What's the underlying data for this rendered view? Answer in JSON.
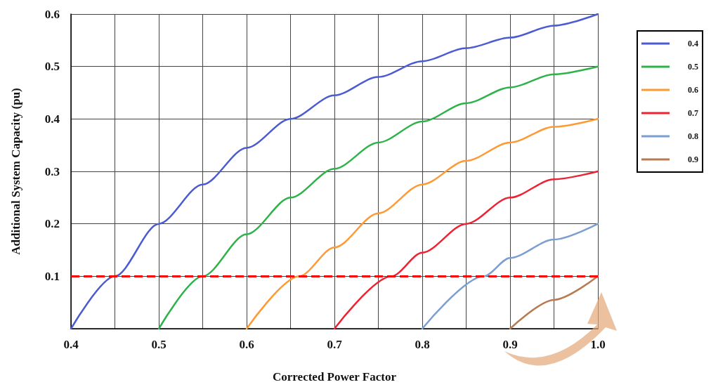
{
  "chart_data": {
    "type": "line",
    "xlabel": "Corrected Power Factor",
    "ylabel": "Additional System Capacity (pu)",
    "xlim": [
      0.4,
      1.0
    ],
    "ylim": [
      0,
      0.6
    ],
    "xticks": [
      0.4,
      {
        "value": 0.45,
        "label": null
      },
      0.5,
      {
        "value": 0.55,
        "label": null
      },
      0.6,
      {
        "value": 0.65,
        "label": null
      },
      0.7,
      {
        "value": 0.75,
        "label": null
      },
      0.8,
      {
        "value": 0.85,
        "label": null
      },
      0.9,
      {
        "value": 0.95,
        "label": null
      },
      "1.0"
    ],
    "yticks": [
      {
        "value": 0,
        "label": null
      },
      0.1,
      0.2,
      0.3,
      0.4,
      0.5,
      0.6
    ],
    "grid": true,
    "legend": "right",
    "marker": "none",
    "line_style": "solid",
    "series": [
      {
        "name": "0.4",
        "color": "#4a5bd4",
        "x": [
          0.4,
          0.45,
          0.5,
          0.55,
          0.6,
          0.65,
          0.7,
          0.75,
          0.8,
          0.85,
          0.9,
          0.95,
          1.0
        ],
        "values": [
          0,
          0.1,
          0.2,
          0.275,
          0.345,
          0.4,
          0.445,
          0.48,
          0.51,
          0.535,
          0.555,
          0.578,
          0.6
        ]
      },
      {
        "name": "0.5",
        "color": "#2eb24a",
        "x": [
          0.5,
          0.55,
          0.6,
          0.65,
          0.7,
          0.75,
          0.8,
          0.85,
          0.9,
          0.95,
          1.0
        ],
        "values": [
          0,
          0.1,
          0.18,
          0.25,
          0.305,
          0.355,
          0.395,
          0.43,
          0.46,
          0.485,
          0.5
        ]
      },
      {
        "name": "0.6",
        "color": "#ff9933",
        "x": [
          0.6,
          0.66,
          0.7,
          0.75,
          0.8,
          0.85,
          0.9,
          0.95,
          1.0
        ],
        "values": [
          0,
          0.1,
          0.155,
          0.22,
          0.275,
          0.32,
          0.355,
          0.385,
          0.4
        ]
      },
      {
        "name": "0.7",
        "color": "#ee2233",
        "x": [
          0.7,
          0.765,
          0.8,
          0.85,
          0.9,
          0.95,
          1.0
        ],
        "values": [
          0,
          0.1,
          0.145,
          0.2,
          0.25,
          0.285,
          0.3
        ]
      },
      {
        "name": "0.8",
        "color": "#7a9fd0",
        "x": [
          0.8,
          0.87,
          0.9,
          0.95,
          1.0
        ],
        "values": [
          0,
          0.1,
          0.135,
          0.17,
          0.2
        ]
      },
      {
        "name": "0.9",
        "color": "#b87a50",
        "x": [
          0.9,
          0.95,
          1.0
        ],
        "values": [
          0,
          0.055,
          0.1
        ]
      }
    ],
    "ref_lines": [
      {
        "axis": "y",
        "value": 0.1,
        "color": "#ff0000",
        "line_style": "dashed"
      }
    ]
  }
}
